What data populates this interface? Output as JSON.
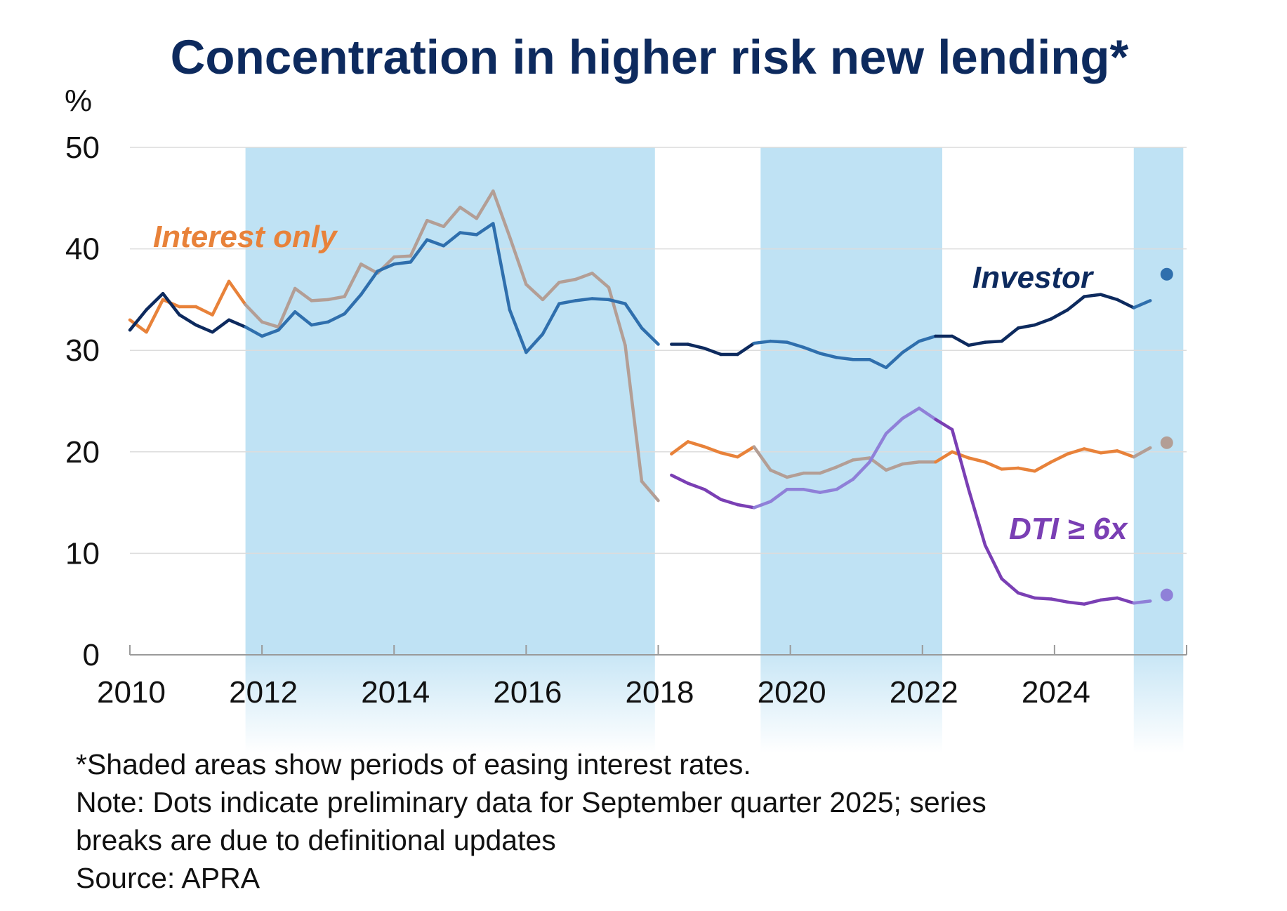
{
  "chart_data": {
    "type": "line",
    "title": "Concentration in higher risk new lending*",
    "ylabel": "%",
    "ylim": [
      0,
      50
    ],
    "yticks": [
      0,
      10,
      20,
      30,
      40,
      50
    ],
    "xlim": [
      2010,
      2026
    ],
    "xticks": [
      2010,
      2012,
      2014,
      2016,
      2018,
      2020,
      2022,
      2024
    ],
    "grid": true,
    "shaded_periods": [
      [
        2011.75,
        2017.95
      ],
      [
        2019.55,
        2022.3
      ],
      [
        2025.2,
        2025.95
      ]
    ],
    "series": [
      {
        "name": "Interest only",
        "color": "#e8823a",
        "segments": [
          {
            "x": [
              2010.0,
              2010.25,
              2010.5,
              2010.75,
              2011.0,
              2011.25,
              2011.5,
              2011.75,
              2012.0,
              2012.25,
              2012.5,
              2012.75,
              2013.0,
              2013.25,
              2013.5,
              2013.75,
              2014.0,
              2014.25,
              2014.5,
              2014.75,
              2015.0,
              2015.25,
              2015.5,
              2015.75,
              2016.0,
              2016.25,
              2016.5,
              2016.75,
              2017.0,
              2017.25,
              2017.5,
              2017.75,
              2018.0
            ],
            "y": [
              33.0,
              31.8,
              35.0,
              34.3,
              34.3,
              33.5,
              36.8,
              34.5,
              32.8,
              32.3,
              36.1,
              34.9,
              35.0,
              35.3,
              38.5,
              37.6,
              39.2,
              39.3,
              42.8,
              42.2,
              44.1,
              43.0,
              45.7,
              41.2,
              36.5,
              35.0,
              36.7,
              37.0,
              37.6,
              36.2,
              30.5,
              17.1,
              15.2
            ]
          },
          {
            "x": [
              2018.2,
              2018.45,
              2018.7,
              2018.95,
              2019.2,
              2019.45,
              2019.7,
              2019.95,
              2020.2,
              2020.45,
              2020.7,
              2020.95,
              2021.2,
              2021.45,
              2021.7,
              2021.95,
              2022.2,
              2022.45,
              2022.7,
              2022.95,
              2023.2,
              2023.45,
              2023.7,
              2023.95,
              2024.2,
              2024.45,
              2024.7,
              2024.95,
              2025.2,
              2025.45
            ],
            "y": [
              19.8,
              21.0,
              20.5,
              19.9,
              19.5,
              20.5,
              18.2,
              17.5,
              17.9,
              17.9,
              18.5,
              19.2,
              19.4,
              18.2,
              18.8,
              19.0,
              19.0,
              20.0,
              19.4,
              19.0,
              18.3,
              18.4,
              18.1,
              19.0,
              19.8,
              20.3,
              19.9,
              20.1,
              19.5,
              20.4
            ]
          }
        ],
        "preliminary": {
          "x": 2025.7,
          "y": 20.9
        }
      },
      {
        "name": "Investor",
        "color": "#0d2a5e",
        "segments": [
          {
            "x": [
              2010.0,
              2010.25,
              2010.5,
              2010.75,
              2011.0,
              2011.25,
              2011.5,
              2011.75,
              2012.0,
              2012.25,
              2012.5,
              2012.75,
              2013.0,
              2013.25,
              2013.5,
              2013.75,
              2014.0,
              2014.25,
              2014.5,
              2014.75,
              2015.0,
              2015.25,
              2015.5,
              2015.75,
              2016.0,
              2016.25,
              2016.5,
              2016.75,
              2017.0,
              2017.25,
              2017.5,
              2017.75,
              2018.0
            ],
            "y": [
              32.0,
              34.0,
              35.6,
              33.5,
              32.5,
              31.8,
              33.0,
              32.3,
              31.4,
              32.0,
              33.8,
              32.5,
              32.8,
              33.6,
              35.5,
              37.8,
              38.5,
              38.7,
              40.9,
              40.3,
              41.6,
              41.4,
              42.5,
              34.0,
              29.8,
              31.6,
              34.6,
              34.9,
              35.1,
              35.0,
              34.6,
              32.2,
              30.6
            ]
          },
          {
            "x": [
              2018.2,
              2018.45,
              2018.7,
              2018.95,
              2019.2,
              2019.45,
              2019.7,
              2019.95,
              2020.2,
              2020.45,
              2020.7,
              2020.95,
              2021.2,
              2021.45,
              2021.7,
              2021.95,
              2022.2,
              2022.45,
              2022.7,
              2022.95,
              2023.2,
              2023.45,
              2023.7,
              2023.95,
              2024.2,
              2024.45,
              2024.7,
              2024.95,
              2025.2,
              2025.45
            ],
            "y": [
              30.6,
              30.6,
              30.2,
              29.6,
              29.6,
              30.7,
              30.9,
              30.8,
              30.3,
              29.7,
              29.3,
              29.1,
              29.1,
              28.3,
              29.8,
              30.9,
              31.4,
              31.4,
              30.5,
              30.8,
              30.9,
              32.2,
              32.5,
              33.1,
              34.0,
              35.3,
              35.5,
              35.0,
              34.2,
              34.9
            ]
          }
        ],
        "preliminary": {
          "x": 2025.7,
          "y": 37.5
        }
      },
      {
        "name": "DTI ≥ 6x",
        "color": "#7a3fb4",
        "segments": [
          {
            "x": [
              2018.2,
              2018.45,
              2018.7,
              2018.95,
              2019.2,
              2019.45,
              2019.7,
              2019.95,
              2020.2,
              2020.45,
              2020.7,
              2020.95,
              2021.2,
              2021.45,
              2021.7,
              2021.95,
              2022.2,
              2022.45,
              2022.7,
              2022.95,
              2023.2,
              2023.45,
              2023.7,
              2023.95,
              2024.2,
              2024.45,
              2024.7,
              2024.95,
              2025.2,
              2025.45
            ],
            "y": [
              17.7,
              16.9,
              16.3,
              15.3,
              14.8,
              14.5,
              15.1,
              16.3,
              16.3,
              16.0,
              16.3,
              17.3,
              19.0,
              21.8,
              23.3,
              24.3,
              23.2,
              22.2,
              16.3,
              10.8,
              7.5,
              6.1,
              5.6,
              5.5,
              5.2,
              5.0,
              5.4,
              5.6,
              5.1,
              5.3
            ]
          }
        ],
        "preliminary": {
          "x": 2025.7,
          "y": 5.9
        }
      }
    ],
    "annotations": [
      {
        "text": "Interest only",
        "color": "#e8823a"
      },
      {
        "text": "Investor",
        "color": "#0d2a5e"
      },
      {
        "text": "DTI ≥ 6x",
        "color": "#7a3fb4"
      }
    ]
  },
  "footnotes": {
    "shading": "*Shaded areas show periods of easing interest rates.",
    "note_line1": "Note: Dots indicate preliminary data for September quarter 2025; series",
    "note_line2": "breaks are due to definitional updates",
    "source": "Source: APRA"
  }
}
